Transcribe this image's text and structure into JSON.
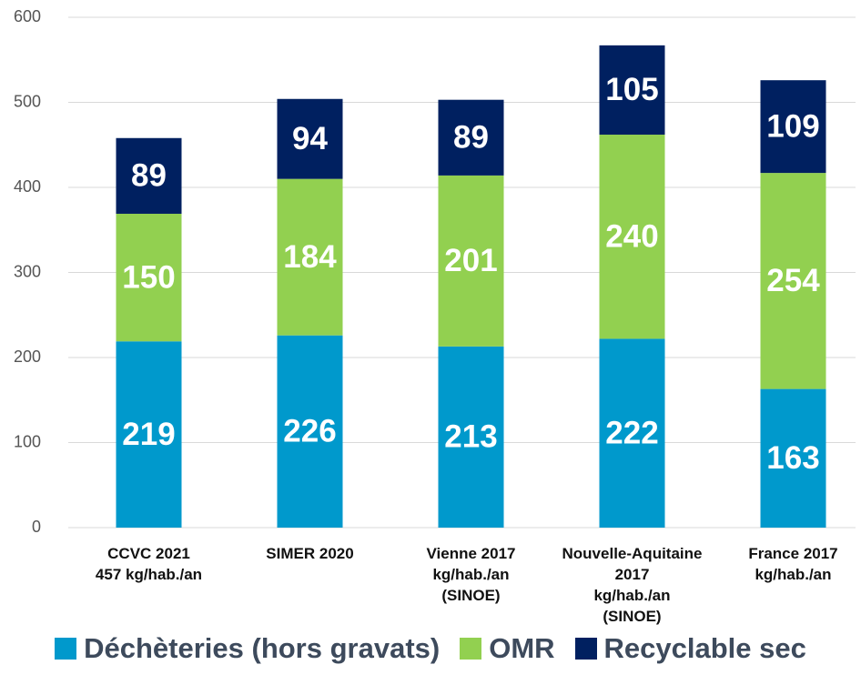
{
  "chart_data": {
    "type": "stacked_bar",
    "categories": [
      "CCVC 2021\n457 kg/hab./an",
      "SIMER 2020",
      "Vienne 2017\nkg/hab./an\n(SINOE)",
      "Nouvelle-Aquitaine\n2017\nkg/hab./an\n(SINOE)",
      "France 2017\nkg/hab./an"
    ],
    "series": [
      {
        "name": "Déchèteries (hors gravats)",
        "color": "#0099cc",
        "values": [
          219,
          226,
          213,
          222,
          163
        ]
      },
      {
        "name": "OMR",
        "color": "#92d050",
        "values": [
          150,
          184,
          201,
          240,
          254
        ]
      },
      {
        "name": "Recyclable sec",
        "color": "#002060",
        "values": [
          89,
          94,
          89,
          105,
          109
        ]
      }
    ],
    "ylim": [
      0,
      600
    ],
    "yticks": [
      0,
      100,
      200,
      300,
      400,
      500,
      600
    ],
    "grid": true,
    "legend": "bottom"
  }
}
